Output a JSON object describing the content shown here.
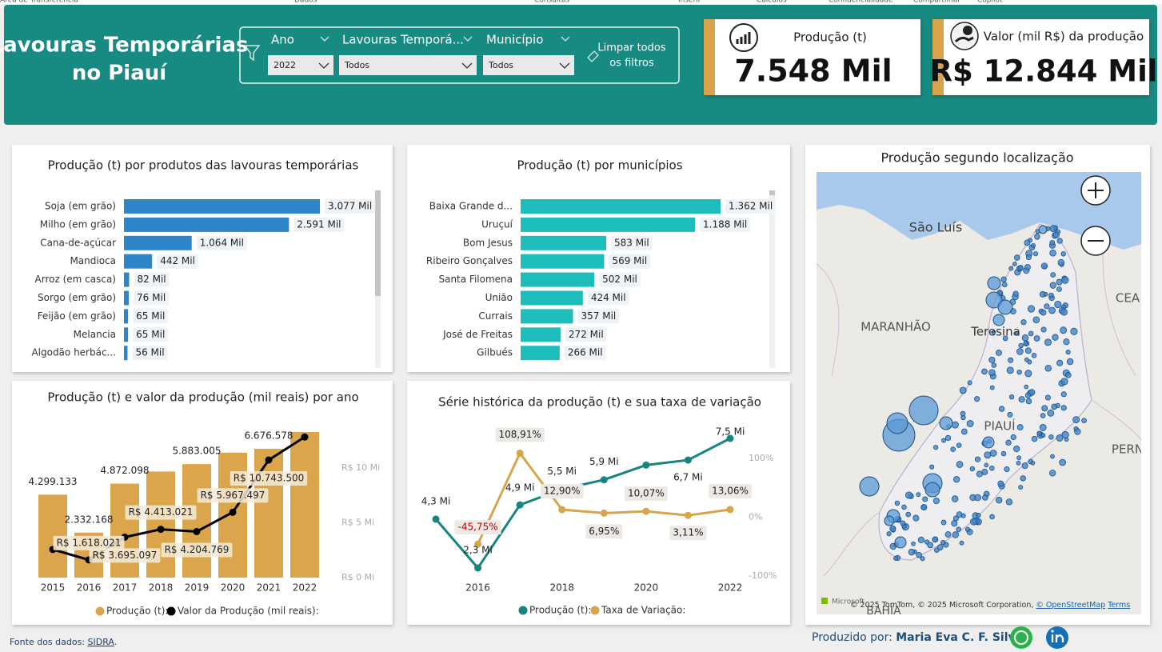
{
  "ribbon": [
    "Área de Transferência",
    "Dados",
    "Consultas",
    "Inserir",
    "Cálculos",
    "Confidencialidade",
    "Compartilhar",
    "Copilot"
  ],
  "header": {
    "title_lines": [
      "Lavouras Temporárias",
      "no Piauí"
    ],
    "filters": [
      {
        "label": "Ano",
        "value": "2022"
      },
      {
        "label": "Lavouras Temporá...",
        "value": "Todos"
      },
      {
        "label": "Município",
        "value": "Todos"
      }
    ],
    "clear_filters": [
      "Limpar todos",
      "os filtros"
    ]
  },
  "kpis": [
    {
      "label": "Produção (t)",
      "value": "7.548 Mil"
    },
    {
      "label": "Valor (mil R$) da produção",
      "value": "R$ 12.844 Mil"
    }
  ],
  "chart_data": [
    {
      "type": "bar",
      "horizontal": true,
      "title": "Produção (t) por produtos das lavouras temporárias",
      "categories": [
        "Soja (em grão)",
        "Milho (em grão)",
        "Cana-de-açúcar",
        "Mandioca",
        "Arroz (em casca)",
        "Sorgo (em grão)",
        "Feijão (em grão)",
        "Melancia",
        "Algodão herbác..."
      ],
      "values": [
        3077,
        2591,
        1064,
        442,
        82,
        76,
        65,
        65,
        56
      ],
      "value_labels": [
        "3.077 Mil",
        "2.591 Mil",
        "1.064 Mil",
        "442 Mil",
        "82 Mil",
        "76 Mil",
        "65 Mil",
        "65 Mil",
        "56 Mil"
      ],
      "color": "#2E86C9"
    },
    {
      "type": "bar",
      "horizontal": true,
      "title": "Produção (t) por municípios",
      "categories": [
        "Baixa Grande d...",
        "Uruçuí",
        "Bom Jesus",
        "Ribeiro Gonçalves",
        "Santa Filomena",
        "União",
        "Currais",
        "José de Freitas",
        "Gilbués"
      ],
      "values": [
        1362,
        1188,
        583,
        569,
        502,
        424,
        357,
        272,
        266
      ],
      "value_labels": [
        "1.362 Mil",
        "1.188 Mil",
        "583 Mil",
        "569 Mil",
        "502 Mil",
        "424 Mil",
        "357 Mil",
        "272 Mil",
        "266 Mil"
      ],
      "color": "#1CBDBB"
    },
    {
      "type": "combo",
      "title": "Produção (t) e valor da produção (mil reais) por ano",
      "categories": [
        "2015",
        "2016",
        "2017",
        "2018",
        "2019",
        "2020",
        "2021",
        "2022"
      ],
      "series": [
        {
          "name": "Produção (t):",
          "color": "#DBA54C",
          "values": [
            4299133,
            2332168,
            4872098,
            5500700,
            5883005,
            6475200,
            6676578,
            7548540
          ],
          "value_labels": [
            "4.299.133",
            "2.332.168",
            "4.872.098",
            null,
            "5.883.005",
            null,
            "6.676.578",
            null
          ]
        },
        {
          "name": "Valor da Produção (mil reais):",
          "color": "#000000",
          "axis": "y2",
          "values": [
            2570000,
            1618021,
            3695097,
            4413021,
            4204769,
            5967497,
            10743500,
            12844000
          ],
          "value_labels": [
            null,
            "R$ 1.618.021",
            "R$ 3.695.097",
            "R$ 4.413.021",
            "R$ 4.204.769",
            "R$ 5.967.497",
            "R$ 10.743.500",
            null
          ]
        }
      ],
      "y2lim": [
        0,
        13300000
      ],
      "y2ticks": [
        {
          "value": 0,
          "label": "R$ 0 Mi"
        },
        {
          "value": 5000000,
          "label": "R$ 5 Mi"
        },
        {
          "value": 10000000,
          "label": "R$ 10 Mi"
        }
      ]
    },
    {
      "type": "line",
      "title": "Série histórica da produção (t) e sua taxa de variação",
      "x": [
        2015,
        2016,
        2017,
        2018,
        2019,
        2020,
        2021,
        2022
      ],
      "xlim": [
        2015,
        2022
      ],
      "xticks": [
        2016,
        2018,
        2020,
        2022
      ],
      "series": [
        {
          "name": "Produção (t):",
          "color": "#16847F",
          "values": [
            4.299133,
            2.332168,
            4.872098,
            5.5007,
            5.883005,
            6.4752,
            6.676578,
            7.54854
          ],
          "value_labels": [
            "4,3 Mi",
            "2,3 Mi",
            "4,9 Mi",
            "5,5 Mi",
            "5,9 Mi",
            null,
            "6,7 Mi",
            "7,5 Mi"
          ]
        },
        {
          "name": "Taxa de Variação:",
          "color": "#D6A54F",
          "axis": "y2",
          "values": [
            null,
            -45.75,
            108.91,
            12.9,
            6.95,
            10.07,
            3.11,
            13.06
          ],
          "value_labels": [
            null,
            "-45,75%",
            "108,91%",
            "12,90%",
            "6,95%",
            "10,07%",
            "3,11%",
            "13,06%"
          ]
        }
      ],
      "y2lim": [
        -100,
        100
      ],
      "y2ticks": [
        {
          "value": -100,
          "label": "-100%"
        },
        {
          "value": 0,
          "label": "0%"
        },
        {
          "value": 100,
          "label": "100%"
        }
      ]
    }
  ],
  "map": {
    "title": "Produção segundo localização",
    "places": [
      "São Luís",
      "MARANHÃO",
      "Teresina",
      "PIAUÍ",
      "CEA",
      "PERN",
      "BAHIA"
    ],
    "attribution": {
      "brand": "Microsoft",
      "text": "© 2025 TomTom, © 2025 Microsoft Corporation,",
      "osm": "© OpenStreetMap",
      "terms": "Terms"
    }
  },
  "footer": {
    "source_label": "Fonte dos dados:",
    "source_link": "SIDRA",
    "source_end": ".",
    "credit_label": "Produzido por:",
    "credit_name": "Maria Eva C. F. Silva"
  }
}
